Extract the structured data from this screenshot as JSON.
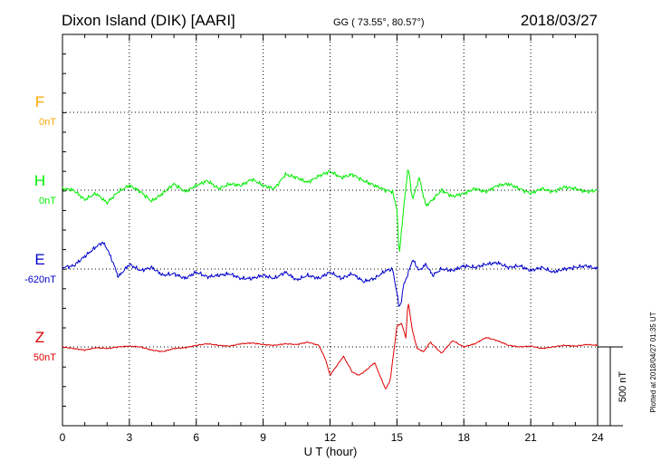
{
  "header": {
    "station": "Dixon Island (DIK)  [AARI]",
    "coords": "GG ( 73.55°,  80.57°)",
    "date": "2018/03/27"
  },
  "plot_note": "Plotted at 2018/04/27 01:35 UT",
  "scale_label": "500 nT",
  "colors": {
    "F": "#FFA500",
    "H": "#00EE00",
    "E": "#0000CC",
    "Z": "#DD0000"
  },
  "chart_data": {
    "type": "line",
    "xlabel": "U T (hour)",
    "xlim": [
      0,
      24
    ],
    "xticks": [
      0,
      3,
      6,
      9,
      12,
      15,
      18,
      21,
      24
    ],
    "yunit": "nT",
    "scale_bar_nT": 500,
    "series": [
      {
        "name": "F",
        "offset_label": "0nT",
        "values": []
      },
      {
        "name": "H",
        "offset_label": "0nT",
        "x": [
          0,
          0.5,
          1,
          1.5,
          2,
          2.5,
          3,
          3.5,
          4,
          4.5,
          5,
          5.5,
          6,
          6.5,
          7,
          7.5,
          8,
          8.5,
          9,
          9.5,
          10,
          10.5,
          11,
          11.5,
          12,
          12.5,
          13,
          13.5,
          14,
          14.5,
          14.8,
          15,
          15.1,
          15.2,
          15.3,
          15.5,
          15.7,
          16,
          16.3,
          16.6,
          17,
          17.5,
          18,
          18.5,
          19,
          19.5,
          20,
          20.5,
          21,
          21.5,
          22,
          22.5,
          23,
          23.5,
          24
        ],
        "values": [
          10,
          0,
          -60,
          -20,
          -80,
          -10,
          30,
          -10,
          -70,
          -20,
          40,
          -10,
          30,
          60,
          10,
          40,
          30,
          70,
          30,
          10,
          100,
          80,
          50,
          90,
          120,
          80,
          100,
          60,
          30,
          0,
          -10,
          -120,
          -420,
          -260,
          -120,
          150,
          -60,
          80,
          -100,
          -60,
          0,
          -40,
          -20,
          10,
          -10,
          30,
          40,
          10,
          -20,
          10,
          -10,
          20,
          10,
          -10,
          0
        ]
      },
      {
        "name": "E",
        "offset_label": "-620nT",
        "x": [
          0,
          0.5,
          1,
          1.5,
          1.8,
          2,
          2.3,
          2.5,
          3,
          3.5,
          4,
          4.5,
          5,
          5.5,
          6,
          6.5,
          7,
          7.5,
          8,
          8.5,
          9,
          9.5,
          10,
          10.5,
          11,
          11.5,
          12,
          12.5,
          13,
          13.5,
          14,
          14.5,
          14.8,
          15,
          15.1,
          15.2,
          15.3,
          15.5,
          15.7,
          16,
          16.3,
          16.6,
          17,
          17.5,
          18,
          18.5,
          19,
          19.5,
          20,
          20.5,
          21,
          21.5,
          22,
          22.5,
          23,
          23.5,
          24
        ],
        "values": [
          10,
          20,
          80,
          140,
          170,
          130,
          30,
          -50,
          30,
          -10,
          10,
          -40,
          -30,
          -60,
          -20,
          -50,
          -40,
          -30,
          -60,
          -60,
          -40,
          -60,
          -20,
          -70,
          -40,
          -60,
          -20,
          -60,
          -30,
          -80,
          -60,
          -10,
          0,
          -150,
          -250,
          -200,
          -100,
          -30,
          60,
          -10,
          30,
          -40,
          0,
          -10,
          20,
          10,
          30,
          40,
          10,
          20,
          -10,
          10,
          -20,
          0,
          10,
          20,
          0
        ]
      },
      {
        "name": "Z",
        "offset_label": "50nT",
        "x": [
          0,
          0.5,
          1,
          1.5,
          2,
          2.5,
          3,
          3.5,
          4,
          4.5,
          5,
          5.5,
          6,
          6.5,
          7,
          7.5,
          8,
          8.5,
          9,
          9.5,
          10,
          10.5,
          11,
          11.5,
          11.8,
          12,
          12.3,
          12.6,
          13,
          13.3,
          13.6,
          14,
          14.2,
          14.5,
          14.7,
          15,
          15.2,
          15.4,
          15.5,
          15.7,
          15.9,
          16.2,
          16.5,
          17,
          17.5,
          18,
          18.5,
          19,
          19.5,
          20,
          20.5,
          21,
          21.5,
          22,
          22.5,
          23,
          23.5,
          24
        ],
        "values": [
          0,
          -10,
          -20,
          -5,
          -10,
          0,
          5,
          0,
          -20,
          -30,
          -10,
          -5,
          10,
          20,
          10,
          5,
          20,
          25,
          15,
          10,
          20,
          15,
          30,
          10,
          -80,
          -180,
          -120,
          -60,
          -160,
          -180,
          -150,
          -100,
          -170,
          -270,
          -210,
          130,
          150,
          60,
          290,
          100,
          -10,
          -30,
          30,
          -40,
          40,
          0,
          20,
          60,
          40,
          10,
          0,
          5,
          -10,
          0,
          10,
          5,
          15,
          10
        ]
      }
    ]
  }
}
